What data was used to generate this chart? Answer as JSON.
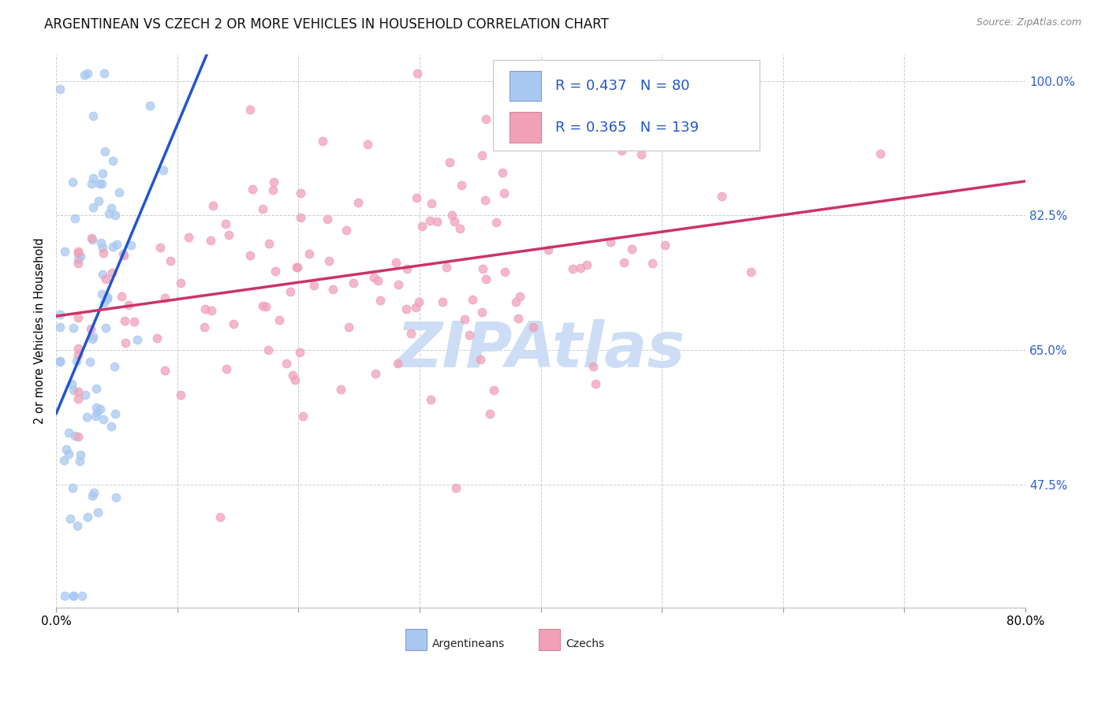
{
  "title": "ARGENTINEAN VS CZECH 2 OR MORE VEHICLES IN HOUSEHOLD CORRELATION CHART",
  "source": "Source: ZipAtlas.com",
  "ylabel": "2 or more Vehicles in Household",
  "r_argentinean": 0.437,
  "n_argentinean": 80,
  "r_czech": 0.365,
  "n_czech": 139,
  "color_argentinean": "#a8c8f0",
  "color_czech": "#f0a0b8",
  "line_color_argentinean": "#2255cc",
  "line_color_czech": "#cc3366",
  "watermark_color": "#ccddf5",
  "title_fontsize": 12,
  "label_fontsize": 10.5,
  "tick_fontsize": 11,
  "legend_fontsize": 13,
  "source_fontsize": 9,
  "xlim": [
    0.0,
    0.8
  ],
  "ylim": [
    0.315,
    1.035
  ],
  "ytick_vals": [
    0.475,
    0.65,
    0.825,
    1.0
  ],
  "ytick_labels": [
    "47.5%",
    "65.0%",
    "82.5%",
    "100.0%"
  ],
  "xtick_left_label": "0.0%",
  "xtick_right_label": "80.0%"
}
